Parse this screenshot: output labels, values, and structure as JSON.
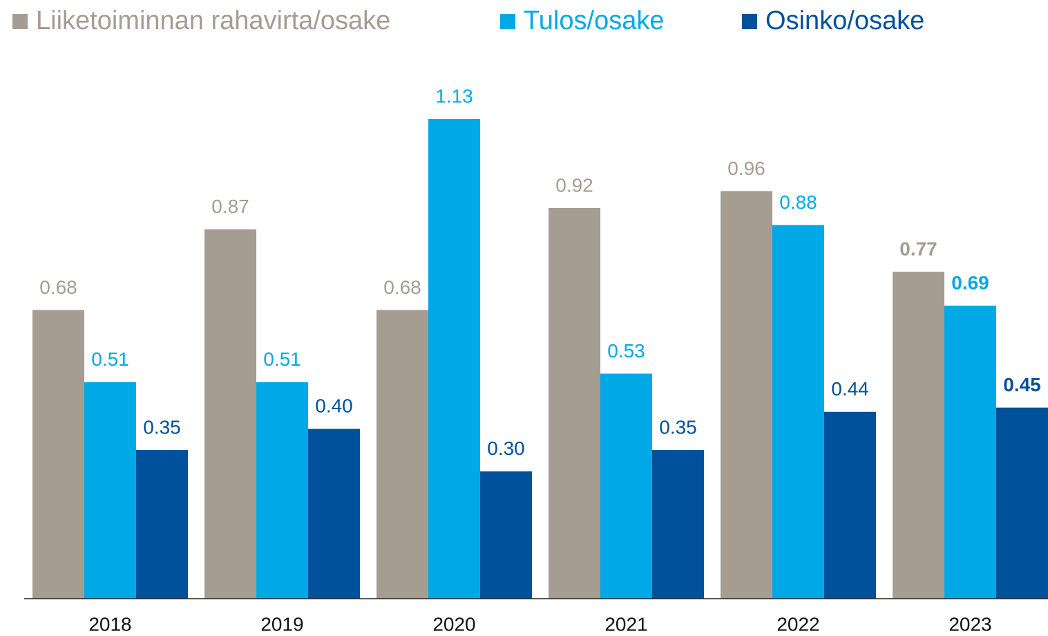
{
  "chart_data": {
    "type": "bar",
    "categories": [
      "2018",
      "2019",
      "2020",
      "2021",
      "2022",
      "2023"
    ],
    "series": [
      {
        "name": "Liiketoiminnan rahavirta/osake",
        "color": "#a59c92",
        "values": [
          0.68,
          0.87,
          0.68,
          0.92,
          0.96,
          0.77
        ],
        "value_labels": [
          "0.68",
          "0.87",
          "0.68",
          "0.92",
          "0.96",
          "0.77"
        ]
      },
      {
        "name": "Tulos/osake",
        "color": "#00a9e6",
        "values": [
          0.51,
          0.51,
          1.13,
          0.53,
          0.88,
          0.69
        ],
        "value_labels": [
          "0.51",
          "0.51",
          "1.13",
          "0.53",
          "0.88",
          "0.69"
        ]
      },
      {
        "name": "Osinko/osake",
        "color": "#00519c",
        "values": [
          0.35,
          0.4,
          0.3,
          0.35,
          0.44,
          0.45
        ],
        "value_labels": [
          "0.35",
          "0.40",
          "0.30",
          "0.35",
          "0.44",
          "0.45"
        ]
      }
    ],
    "legend": "top-left"
  }
}
